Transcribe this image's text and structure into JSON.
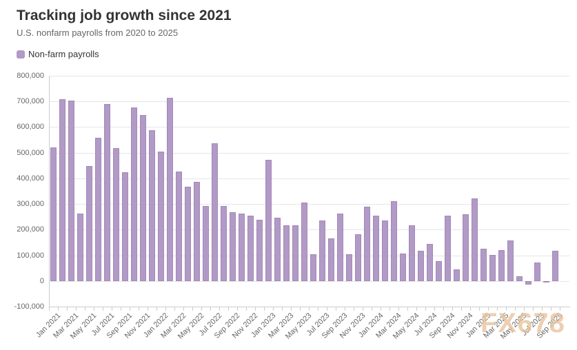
{
  "page": {
    "title": "Tracking job growth since 2021",
    "subtitle": "U.S. nonfarm payrolls from 2020 to 2025",
    "watermark": "FX678"
  },
  "legend": {
    "label": "Non-farm payrolls"
  },
  "colors": {
    "bar_fill": "#b29ac6",
    "bar_border": "#a288b9",
    "grid": "#e6e6e6",
    "axis": "#cccccc",
    "title_text": "#333333",
    "muted_text": "#666666",
    "watermark": "#e9c29c"
  },
  "chart_data": {
    "type": "bar",
    "title": "Tracking job growth since 2021",
    "subtitle": "U.S. nonfarm payrolls from 2020 to 2025",
    "series_name": "Non-farm payrolls",
    "legend_position": "top-left",
    "grid": true,
    "ylim": [
      -100000,
      800000
    ],
    "y_tick_step": 100000,
    "x_label_every": 2,
    "x": [
      "Jan 2021",
      "Feb 2021",
      "Mar 2021",
      "Apr 2021",
      "May 2021",
      "Jun 2021",
      "Jul 2021",
      "Aug 2021",
      "Sep 2021",
      "Oct 2021",
      "Nov 2021",
      "Dec 2021",
      "Jan 2022",
      "Feb 2022",
      "Mar 2022",
      "Apr 2022",
      "May 2022",
      "Jun 2022",
      "Jul 2022",
      "Aug 2022",
      "Sep 2022",
      "Oct 2022",
      "Nov 2022",
      "Dec 2022",
      "Jan 2023",
      "Feb 2023",
      "Mar 2023",
      "Apr 2023",
      "May 2023",
      "Jun 2023",
      "Jul 2023",
      "Aug 2023",
      "Sep 2023",
      "Oct 2023",
      "Nov 2023",
      "Dec 2023",
      "Jan 2024",
      "Feb 2024",
      "Mar 2024",
      "Apr 2024",
      "May 2024",
      "Jun 2024",
      "Jul 2024",
      "Aug 2024",
      "Sep 2024",
      "Oct 2024",
      "Nov 2024",
      "Dec 2024",
      "Jan 2025",
      "Feb 2025",
      "Mar 2025",
      "Apr 2025",
      "May 2025",
      "Jun 2025",
      "Jul 2025",
      "Aug 2025",
      "Sep 2025"
    ],
    "values": [
      520000,
      710000,
      704000,
      263000,
      447000,
      557000,
      689000,
      517000,
      424000,
      677000,
      647000,
      588000,
      504000,
      714000,
      428000,
      368000,
      386000,
      293000,
      537000,
      292000,
      269000,
      263000,
      256000,
      239000,
      472000,
      248000,
      217000,
      217000,
      306000,
      105000,
      236000,
      165000,
      262000,
      105000,
      182000,
      290000,
      256000,
      236000,
      310000,
      108000,
      216000,
      118000,
      144000,
      78000,
      255000,
      44000,
      261000,
      323000,
      125000,
      102000,
      120000,
      158000,
      19000,
      -13000,
      72000,
      -4000,
      119000
    ]
  }
}
